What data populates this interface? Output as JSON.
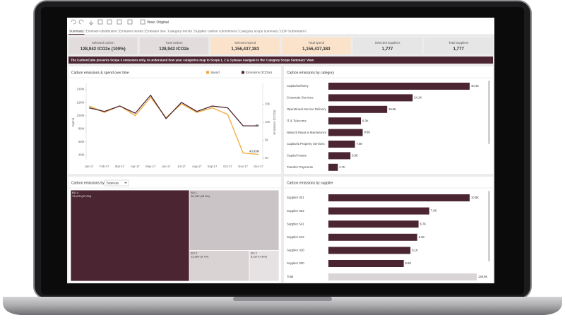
{
  "toolbar": {
    "view": "View: Original"
  },
  "tabs": [
    "Summary",
    "Emission distribution",
    "Emission trends",
    "Emission tree",
    "Category trends",
    "Supplier carbon commitment",
    "Category scope summary",
    "CDP Submission"
  ],
  "kpis": [
    {
      "label": "Selected carbon",
      "value": "128,942 tCO2e (100%)"
    },
    {
      "label": "Total carbon",
      "value": "128,942 tCO2e"
    },
    {
      "label": "Selected spend",
      "value": "1,156,437,383"
    },
    {
      "label": "Total spend",
      "value": "1,156,437,383"
    },
    {
      "label": "Selected suppliers",
      "value": "1,777"
    },
    {
      "label": "Total suppliers",
      "value": "1,777"
    }
  ],
  "banner": "The CarbonCube presents Scope 3 emissions only, to understand how your categories map to Scope 1, 2 & 3 please navigate to the 'Category Scope Summary' View.",
  "spend_emissions_chart": {
    "type": "line",
    "title": "Carbon emissions & spend over time",
    "categories": [
      "Jan-17",
      "Feb-17",
      "Mar-17",
      "Apr-17",
      "May-17",
      "Jun-17",
      "Jul-17",
      "Aug-17",
      "Sep-17",
      "Oct-17",
      "Nov-17",
      "Dec-17"
    ],
    "series": [
      {
        "name": "Spend",
        "color": "#f2a93b",
        "values": [
          115,
          105,
          115,
          100,
          128,
          97,
          118,
          105,
          112,
          102,
          43,
          40.93
        ],
        "end_label": "40.93M"
      },
      {
        "name": "Emissions (tCO2e)",
        "color": "#4b2531",
        "axis": "y2",
        "values": [
          14,
          13,
          14.5,
          12.5,
          17.5,
          11,
          15.5,
          13,
          14.5,
          14,
          9,
          9
        ],
        "end_label": "9K"
      }
    ],
    "ylabel": "Spend",
    "y2label": "Emissions (tCO2e)",
    "ylim": [
      35,
      145
    ],
    "yticks": [
      {
        "value": 40,
        "label": "40M"
      },
      {
        "value": 60,
        "label": "60M"
      },
      {
        "value": 80,
        "label": "80M"
      },
      {
        "value": 100,
        "label": "100M"
      },
      {
        "value": 120,
        "label": "120M"
      },
      {
        "value": 140,
        "label": "140M"
      }
    ],
    "y2lim": [
      0,
      20
    ],
    "y2ticks": [
      {
        "value": 0,
        "label": "0K"
      },
      {
        "value": 5,
        "label": "5K"
      },
      {
        "value": 10,
        "label": "10K"
      },
      {
        "value": 15,
        "label": "15K"
      }
    ]
  },
  "category_chart": {
    "type": "bar",
    "title": "Carbon emissions by category",
    "categories": [
      "Capital Delivery",
      "Corporate Services",
      "Operational Service Delivery",
      "IT & Telecoms",
      "Network Repair & Maintenance",
      "Capital & Property Services",
      "Capital Assets",
      "Transfer Payments"
    ],
    "values": [
      40.4,
      24.1,
      16.8,
      9.3,
      9.8,
      7.6,
      6.3,
      2.7
    ],
    "value_labels": [
      "40.4K",
      "24.1K",
      "16.8K",
      "9.3K",
      "9.8K",
      "7.6K",
      "6.3K",
      "2.7K"
    ],
    "color": "#4b2531"
  },
  "supplier_chart": {
    "type": "bar",
    "title": "Carbon emissions by supplier",
    "categories": [
      "Supplier 031",
      "Supplier 002",
      "Supplier 541",
      "Supplier 542",
      "Supplier 028",
      "Supplier 030"
    ],
    "values": [
      10.5,
      7.5,
      6.7,
      6.6,
      6.1,
      5.6
    ],
    "value_labels": [
      "10.5K",
      "7.5K",
      "6.7K",
      "6.6K",
      "6.1K",
      "5.6K"
    ],
    "color": "#4b2531",
    "total": {
      "label": "Total",
      "value": 128.9,
      "value_label": "128.9K",
      "color": "#d9d5d6"
    }
  },
  "treemap": {
    "type": "treemap",
    "title": "Carbon emissions by",
    "dropdown": "Business",
    "items": [
      {
        "name": "BU 4",
        "value": 73475,
        "value_label": "73,475 (57.0%)",
        "color": "#4b2531"
      },
      {
        "name": "BU 1",
        "value": 36780,
        "value_label": "36,780 (28.5%)",
        "color": "#cbc4c6"
      },
      {
        "name": "BU 3",
        "value": 12500,
        "value_label": "12,500 (9.7%)",
        "color": "#d9d3d4"
      },
      {
        "name": "BU 2",
        "value": 6187,
        "value_label": "6,187 (4.8%)",
        "color": "#e6e1e2"
      }
    ]
  }
}
